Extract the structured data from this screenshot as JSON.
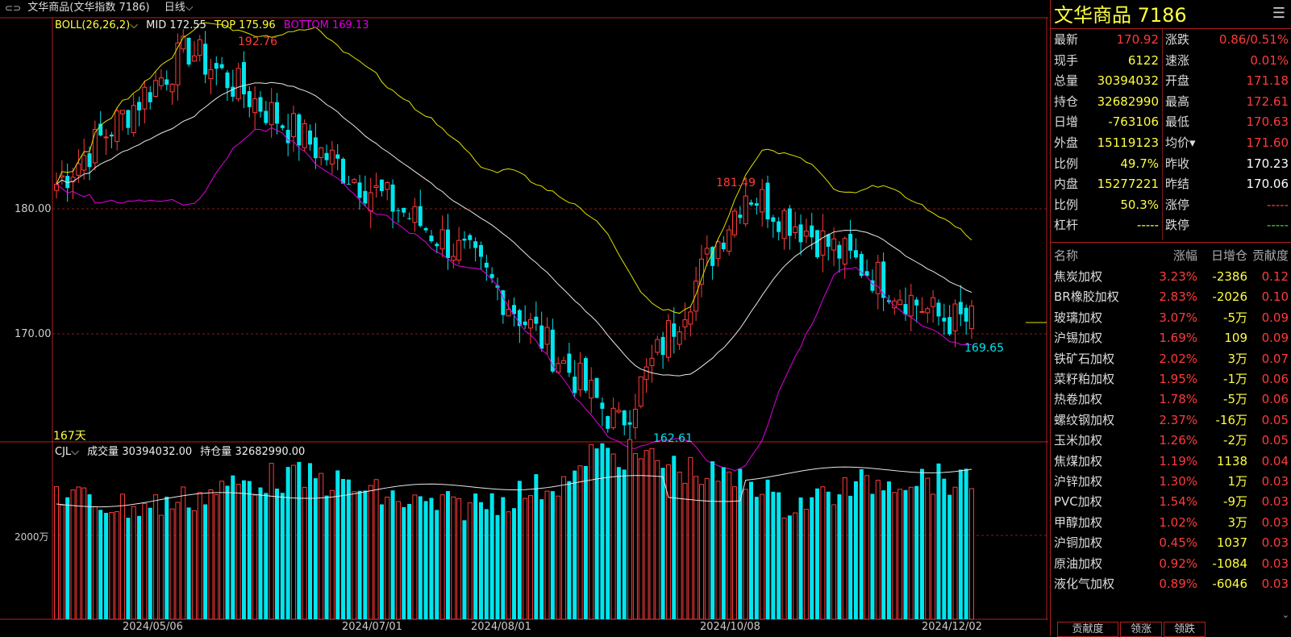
{
  "window": {
    "title": "文华商品(文华指数 7186)",
    "period": "日线",
    "back_icon": "window-link-icon"
  },
  "indicator": {
    "name": "BOLL(26,26,2)",
    "mid_label": "MID",
    "mid": "172.55",
    "top_label": "TOP",
    "top": "175.96",
    "bottom_label": "BOTTOM",
    "bottom": "169.13",
    "colors": {
      "mid": "#e8e8e8",
      "top": "#e0e000",
      "bottom": "#e000e0"
    }
  },
  "main_axis": {
    "labels": [
      "180.00",
      "170.00"
    ],
    "days": "167天",
    "annotations": {
      "high": "192.76",
      "mid_high": "181.49",
      "low": "162.61",
      "last_low": "169.65"
    }
  },
  "volume_panel": {
    "name": "CJL",
    "volume_label": "成交量",
    "volume": "30394032.00",
    "oi_label": "持仓量",
    "oi": "32682990.00",
    "axis_label": "2000万"
  },
  "x_axis": [
    "2024/05/06",
    "2024/07/01",
    "2024/08/01",
    "2024/10/08",
    "2024/12/02"
  ],
  "colors": {
    "up": "#ff3b3b",
    "down": "#00e5ee",
    "border": "#b02020",
    "accent": "#ffff40"
  },
  "chart_data": {
    "type": "candlestick",
    "title": "文华商品",
    "close_points": [
      {
        "date": "2024/05/06",
        "value": 182
      },
      {
        "date": "2024/05/27",
        "value": 192.76
      },
      {
        "date": "2024/07/01",
        "value": 182.5
      },
      {
        "date": "2024/08/01",
        "value": 176
      },
      {
        "date": "2024/09/10",
        "value": 162.61
      },
      {
        "date": "2024/10/08",
        "value": 181.49
      },
      {
        "date": "2024/12/02",
        "value": 171.3
      },
      {
        "date": "last",
        "value": 170.92
      }
    ],
    "boll": {
      "mid": 172.55,
      "top": 175.96,
      "bottom": 169.13
    },
    "volume": 30394032,
    "open_interest": 32682990
  },
  "panel": {
    "title": "文华商品 7186",
    "menu_icon": "menu-icon",
    "quote": [
      {
        "l1": "最新",
        "v1": "170.92",
        "c1": "red",
        "l2": "涨跌",
        "v2": "0.86/0.51%",
        "c2": "red"
      },
      {
        "l1": "现手",
        "v1": "6122",
        "c1": "yellow",
        "l2": "速涨",
        "v2": "0.01%",
        "c2": "red"
      },
      {
        "l1": "总量",
        "v1": "30394032",
        "c1": "yellow",
        "l2": "开盘",
        "v2": "171.18",
        "c2": "red"
      },
      {
        "l1": "持仓",
        "v1": "32682990",
        "c1": "yellow",
        "l2": "最高",
        "v2": "172.61",
        "c2": "red"
      },
      {
        "l1": "日增",
        "v1": "-763106",
        "c1": "yellow",
        "l2": "最低",
        "v2": "170.63",
        "c2": "red"
      },
      {
        "l1": "外盘",
        "v1": "15119123",
        "c1": "yellow",
        "l2": "均价▾",
        "v2": "171.60",
        "c2": "red"
      },
      {
        "l1": "比例",
        "v1": "49.7%",
        "c1": "yellow",
        "l2": "昨收",
        "v2": "170.23",
        "c2": "white"
      },
      {
        "l1": "内盘",
        "v1": "15277221",
        "c1": "yellow",
        "l2": "昨结",
        "v2": "170.06",
        "c2": "white"
      },
      {
        "l1": "比例",
        "v1": "50.3%",
        "c1": "yellow",
        "l2": "涨停",
        "v2": "-----",
        "c2": "red"
      },
      {
        "l1": "杠杆",
        "v1": "-----",
        "c1": "yellow",
        "l2": "跌停",
        "v2": "-----",
        "c2": "green"
      }
    ],
    "contrib_header": {
      "name": "名称",
      "pct": "涨幅",
      "daily": "日增仓",
      "contrib": "贡献度"
    },
    "contrib": [
      {
        "name": "焦炭加权",
        "pct": "3.23%",
        "daily": "-2386",
        "contrib": "0.12"
      },
      {
        "name": "BR橡胶加权",
        "pct": "2.83%",
        "daily": "-2026",
        "contrib": "0.10"
      },
      {
        "name": "玻璃加权",
        "pct": "3.07%",
        "daily": "-5万",
        "contrib": "0.09"
      },
      {
        "name": "沪锡加权",
        "pct": "1.69%",
        "daily": "109",
        "contrib": "0.09"
      },
      {
        "name": "铁矿石加权",
        "pct": "2.02%",
        "daily": "3万",
        "contrib": "0.07"
      },
      {
        "name": "菜籽粕加权",
        "pct": "1.95%",
        "daily": "-1万",
        "contrib": "0.06"
      },
      {
        "name": "热卷加权",
        "pct": "1.78%",
        "daily": "-5万",
        "contrib": "0.06"
      },
      {
        "name": "螺纹钢加权",
        "pct": "2.37%",
        "daily": "-16万",
        "contrib": "0.05"
      },
      {
        "name": "玉米加权",
        "pct": "1.26%",
        "daily": "-2万",
        "contrib": "0.05"
      },
      {
        "name": "焦煤加权",
        "pct": "1.19%",
        "daily": "1138",
        "contrib": "0.04"
      },
      {
        "name": "沪锌加权",
        "pct": "1.30%",
        "daily": "1万",
        "contrib": "0.03"
      },
      {
        "name": "PVC加权",
        "pct": "1.54%",
        "daily": "-9万",
        "contrib": "0.03"
      },
      {
        "name": "甲醇加权",
        "pct": "1.02%",
        "daily": "3万",
        "contrib": "0.03"
      },
      {
        "name": "沪铜加权",
        "pct": "0.45%",
        "daily": "1037",
        "contrib": "0.03"
      },
      {
        "name": "原油加权",
        "pct": "0.92%",
        "daily": "-1084",
        "contrib": "0.03"
      },
      {
        "name": "液化气加权",
        "pct": "0.89%",
        "daily": "-6046",
        "contrib": "0.03"
      }
    ],
    "tabs": [
      "贡献度",
      "领涨",
      "领跌"
    ]
  }
}
